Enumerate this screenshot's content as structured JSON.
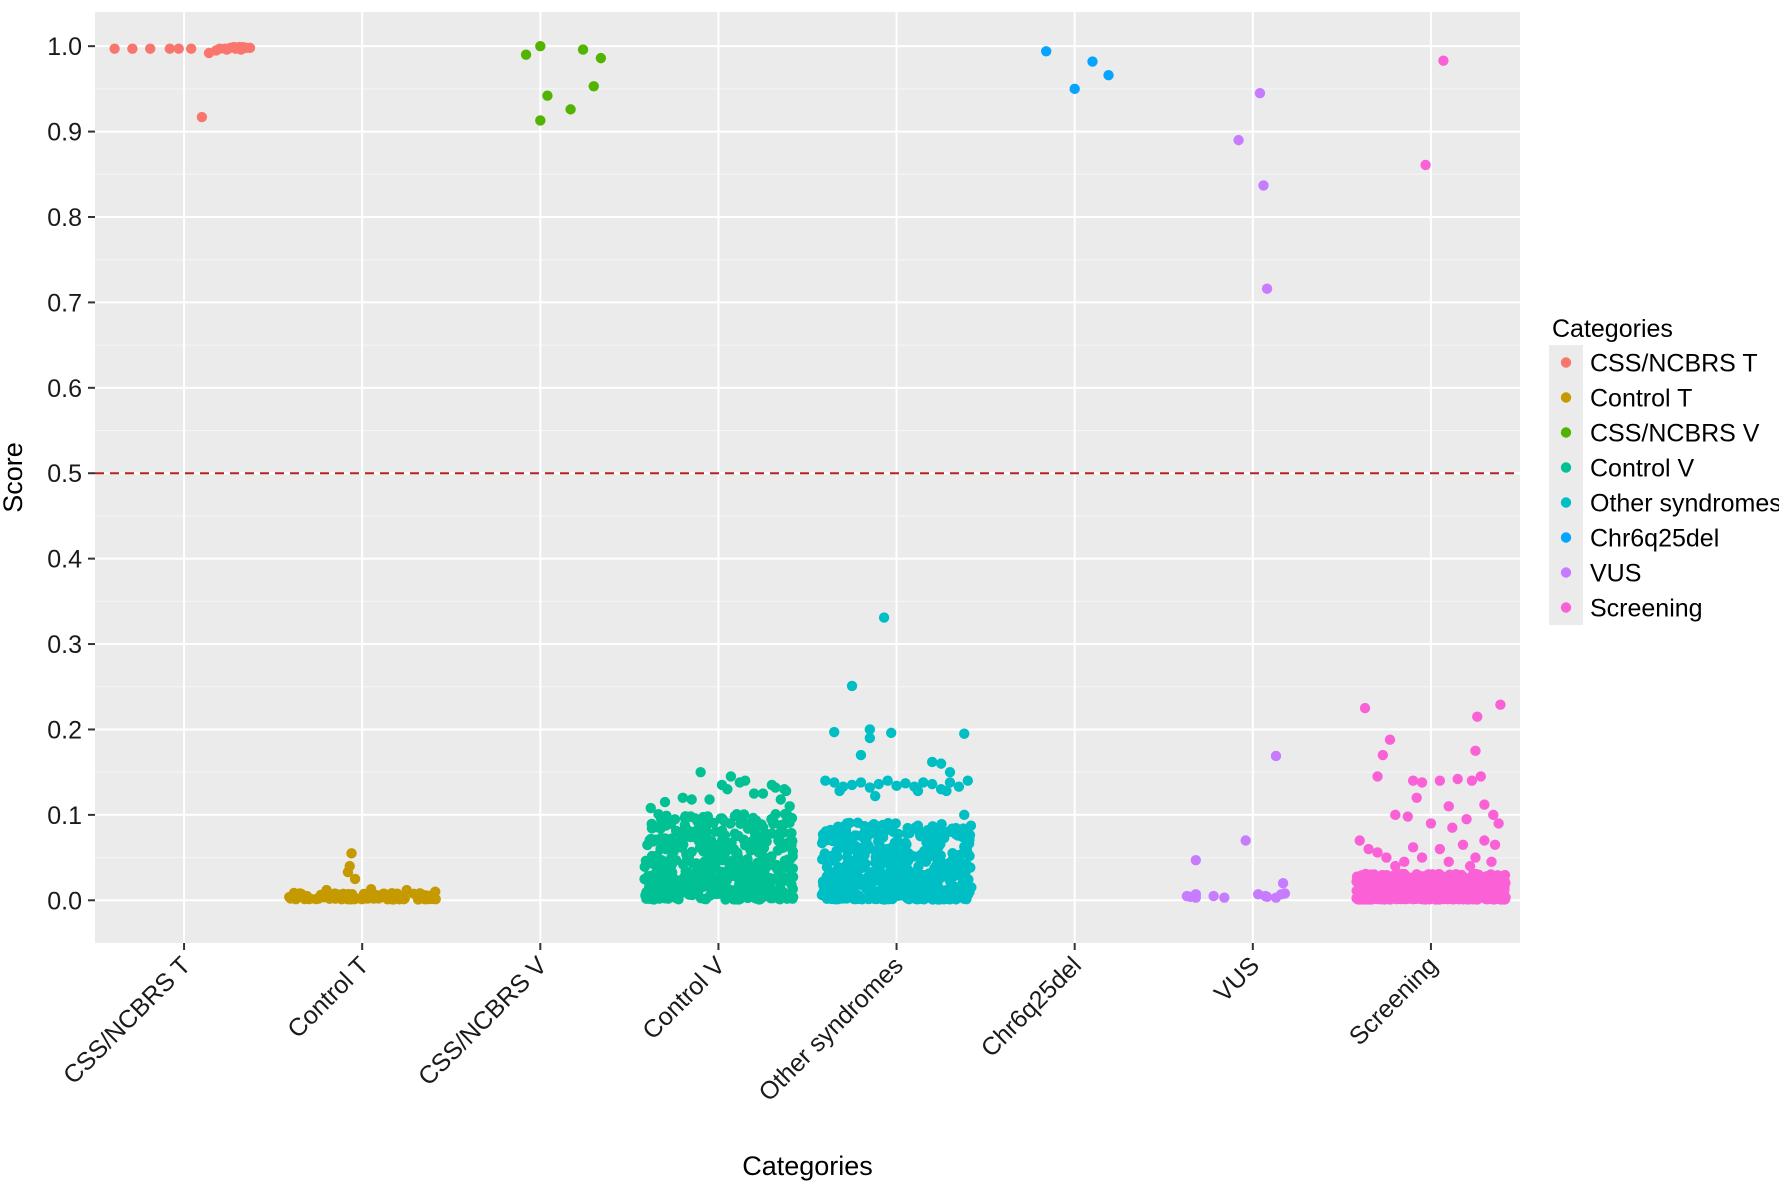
{
  "chart_data": {
    "type": "scatter",
    "xlabel": "Categories",
    "ylabel": "Score",
    "ylim": [
      -0.05,
      1.04
    ],
    "yticks": [
      "0.0",
      "0.1",
      "0.2",
      "0.3",
      "0.4",
      "0.5",
      "0.6",
      "0.7",
      "0.8",
      "0.9",
      "1.0"
    ],
    "grid": true,
    "threshold": 0.5,
    "threshold_color": "#B22222",
    "categories": [
      "CSS/NCBRS T",
      "Control T",
      "CSS/NCBRS V",
      "Control V",
      "Other syndromes",
      "Chr6q25del",
      "VUS",
      "Screening"
    ],
    "legend": {
      "title": "Categories",
      "placement": "right"
    },
    "series": [
      {
        "name": "CSS/NCBRS T",
        "color": "#F8766D",
        "points": [
          [
            -0.39,
            0.997
          ],
          [
            -0.29,
            0.997
          ],
          [
            -0.19,
            0.997
          ],
          [
            -0.08,
            0.997
          ],
          [
            -0.03,
            0.997
          ],
          [
            0.04,
            0.997
          ],
          [
            0.1,
            0.917
          ],
          [
            0.14,
            0.992
          ],
          [
            0.18,
            0.995
          ],
          [
            0.2,
            0.997
          ],
          [
            0.23,
            0.997
          ],
          [
            0.26,
            0.998
          ],
          [
            0.29,
            0.997
          ],
          [
            0.31,
            0.999
          ],
          [
            0.33,
            0.999
          ],
          [
            0.35,
            0.998
          ],
          [
            0.37,
            0.998
          ],
          [
            0.24,
            0.996
          ],
          [
            0.32,
            0.996
          ],
          [
            0.28,
            0.999
          ]
        ]
      },
      {
        "name": "Control T",
        "color": "#C49A00",
        "jitter": {
          "n": 95,
          "width": 0.42,
          "max": 0.008,
          "seed": 2
        },
        "points": [
          [
            -0.06,
            0.055
          ],
          [
            -0.07,
            0.04
          ],
          [
            -0.08,
            0.033
          ],
          [
            -0.04,
            0.025
          ],
          [
            0.41,
            0.01
          ],
          [
            -0.2,
            0.012
          ],
          [
            0.05,
            0.013
          ],
          [
            -0.35,
            0.008
          ],
          [
            0.25,
            0.012
          ]
        ]
      },
      {
        "name": "CSS/NCBRS V",
        "color": "#53B400",
        "points": [
          [
            -0.08,
            0.99
          ],
          [
            0.0,
            1.0
          ],
          [
            0.04,
            0.942
          ],
          [
            0.0,
            0.913
          ],
          [
            0.17,
            0.926
          ],
          [
            0.24,
            0.996
          ],
          [
            0.3,
            0.953
          ],
          [
            0.34,
            0.986
          ]
        ]
      },
      {
        "name": "Control V",
        "color": "#00C094",
        "jitter": {
          "n": 480,
          "width": 0.42,
          "max": 0.1,
          "seed": 3
        },
        "points": [
          [
            -0.1,
            0.15
          ],
          [
            0.07,
            0.145
          ],
          [
            0.15,
            0.14
          ],
          [
            0.3,
            0.135
          ],
          [
            0.37,
            0.13
          ],
          [
            -0.3,
            0.115
          ],
          [
            -0.2,
            0.12
          ],
          [
            0.25,
            0.125
          ],
          [
            0.38,
            0.128
          ],
          [
            0.12,
            0.138
          ],
          [
            0.02,
            0.135
          ],
          [
            0.32,
            0.132
          ],
          [
            -0.38,
            0.108
          ],
          [
            -0.15,
            0.118
          ],
          [
            0.4,
            0.11
          ],
          [
            -0.05,
            0.118
          ],
          [
            0.05,
            0.13
          ],
          [
            0.2,
            0.125
          ],
          [
            0.35,
            0.118
          ]
        ]
      },
      {
        "name": "Other syndromes",
        "color": "#00B6EB",
        "real_color": "#00BFC4",
        "jitter": {
          "n": 560,
          "width": 0.42,
          "max": 0.09,
          "seed": 4
        },
        "points": [
          [
            -0.07,
            0.331
          ],
          [
            -0.25,
            0.251
          ],
          [
            -0.35,
            0.197
          ],
          [
            -0.15,
            0.2
          ],
          [
            -0.15,
            0.19
          ],
          [
            -0.03,
            0.196
          ],
          [
            0.38,
            0.195
          ],
          [
            0.2,
            0.162
          ],
          [
            -0.2,
            0.17
          ],
          [
            0.25,
            0.16
          ],
          [
            0.3,
            0.15
          ],
          [
            -0.4,
            0.14
          ],
          [
            -0.35,
            0.138
          ],
          [
            -0.3,
            0.133
          ],
          [
            -0.25,
            0.135
          ],
          [
            -0.2,
            0.138
          ],
          [
            -0.15,
            0.132
          ],
          [
            -0.1,
            0.136
          ],
          [
            -0.05,
            0.14
          ],
          [
            0.0,
            0.134
          ],
          [
            0.05,
            0.137
          ],
          [
            0.1,
            0.133
          ],
          [
            0.15,
            0.138
          ],
          [
            0.2,
            0.136
          ],
          [
            0.25,
            0.13
          ],
          [
            0.3,
            0.138
          ],
          [
            0.35,
            0.133
          ],
          [
            0.4,
            0.14
          ],
          [
            -0.32,
            0.128
          ],
          [
            0.12,
            0.128
          ],
          [
            0.28,
            0.128
          ],
          [
            -0.12,
            0.122
          ],
          [
            0.38,
            0.1
          ]
        ]
      },
      {
        "name": "Chr6q25del",
        "color": "#06A4FF",
        "points": [
          [
            -0.16,
            0.994
          ],
          [
            0.0,
            0.95
          ],
          [
            0.1,
            0.982
          ],
          [
            0.19,
            0.966
          ]
        ]
      },
      {
        "name": "VUS",
        "color": "#C77CFF",
        "points": [
          [
            0.04,
            0.945
          ],
          [
            -0.08,
            0.89
          ],
          [
            0.06,
            0.837
          ],
          [
            0.08,
            0.716
          ],
          [
            0.13,
            0.169
          ],
          [
            -0.04,
            0.07
          ],
          [
            -0.32,
            0.047
          ],
          [
            -0.37,
            0.005
          ],
          [
            -0.32,
            0.003
          ],
          [
            -0.22,
            0.005
          ],
          [
            -0.16,
            0.003
          ],
          [
            -0.35,
            0.004
          ],
          [
            -0.32,
            0.007
          ],
          [
            0.03,
            0.007
          ],
          [
            0.08,
            0.004
          ],
          [
            0.17,
            0.02
          ],
          [
            0.16,
            0.007
          ],
          [
            0.13,
            0.003
          ],
          [
            0.07,
            0.005
          ],
          [
            0.18,
            0.008
          ]
        ]
      },
      {
        "name": "Screening",
        "color": "#FB61D7",
        "jitter": {
          "n": 700,
          "width": 0.42,
          "max": 0.03,
          "seed": 5
        },
        "points": [
          [
            0.07,
            0.983
          ],
          [
            -0.03,
            0.861
          ],
          [
            0.39,
            0.229
          ],
          [
            -0.37,
            0.225
          ],
          [
            0.26,
            0.215
          ],
          [
            -0.23,
            0.188
          ],
          [
            -0.27,
            0.17
          ],
          [
            0.25,
            0.175
          ],
          [
            0.28,
            0.145
          ],
          [
            0.23,
            0.14
          ],
          [
            -0.1,
            0.14
          ],
          [
            -0.05,
            0.138
          ],
          [
            0.05,
            0.14
          ],
          [
            0.15,
            0.142
          ],
          [
            -0.3,
            0.145
          ],
          [
            -0.08,
            0.12
          ],
          [
            0.1,
            0.11
          ],
          [
            0.35,
            0.1
          ],
          [
            -0.2,
            0.1
          ],
          [
            0.3,
            0.112
          ],
          [
            0.2,
            0.095
          ],
          [
            -0.13,
            0.098
          ],
          [
            0.0,
            0.09
          ],
          [
            0.38,
            0.09
          ],
          [
            0.12,
            0.085
          ],
          [
            -0.4,
            0.07
          ],
          [
            -0.35,
            0.06
          ],
          [
            -0.3,
            0.056
          ],
          [
            -0.25,
            0.05
          ],
          [
            -0.15,
            0.045
          ],
          [
            0.05,
            0.06
          ],
          [
            0.18,
            0.065
          ],
          [
            0.3,
            0.07
          ],
          [
            0.36,
            0.065
          ],
          [
            -0.05,
            0.05
          ],
          [
            0.25,
            0.05
          ],
          [
            0.1,
            0.045
          ],
          [
            -0.2,
            0.04
          ],
          [
            0.4,
            0.028
          ],
          [
            -0.1,
            0.062
          ],
          [
            0.34,
            0.045
          ],
          [
            0.22,
            0.04
          ]
        ]
      }
    ]
  }
}
